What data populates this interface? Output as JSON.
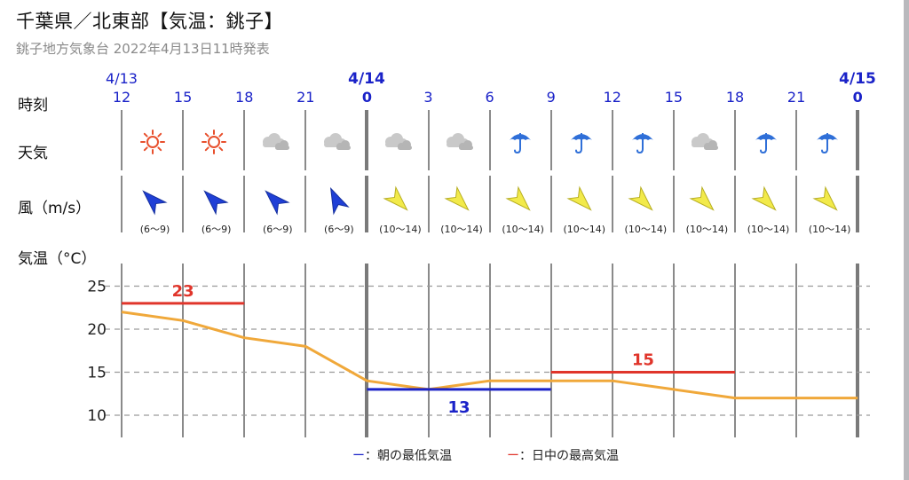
{
  "header": {
    "title": "千葉県／北東部【気温：銚子】",
    "subtitle": "銚子地方気象台 2022年4月13日11時発表"
  },
  "rows": {
    "time_label": "時刻",
    "weather_label": "天気",
    "wind_label": "風（m/s）",
    "temp_label": "気温（°C）"
  },
  "dates": [
    "4/13",
    "4/14",
    "4/15"
  ],
  "hours": [
    "12",
    "15",
    "18",
    "21",
    "0",
    "3",
    "6",
    "9",
    "12",
    "15",
    "18",
    "21",
    "0"
  ],
  "weather": [
    "sunny-icon",
    "sunny-icon",
    "cloudy-icon",
    "cloudy-icon",
    "cloudy-icon",
    "cloudy-icon",
    "umbrella-icon",
    "umbrella-icon",
    "umbrella-icon",
    "cloudy-icon",
    "umbrella-icon",
    "umbrella-icon"
  ],
  "wind": {
    "ranges": [
      "(6〜9)",
      "(6〜9)",
      "(6〜9)",
      "(6〜9)",
      "(10〜14)",
      "(10〜14)",
      "(10〜14)",
      "(10〜14)",
      "(10〜14)",
      "(10〜14)",
      "(10〜14)",
      "(10〜14)"
    ],
    "directions": [
      "SE",
      "SE",
      "SE",
      "SSE",
      "NW",
      "NW",
      "NW",
      "NW",
      "NW",
      "NW",
      "NW",
      "NW"
    ],
    "colors": [
      "#1f3fd6",
      "#1f3fd6",
      "#1f3fd6",
      "#1f3fd6",
      "#f2ea4a",
      "#f2ea4a",
      "#f2ea4a",
      "#f2ea4a",
      "#f2ea4a",
      "#f2ea4a",
      "#f2ea4a",
      "#f2ea4a"
    ]
  },
  "legend": {
    "min_label": "ー：朝の最低気温",
    "max_label": "ー：日中の最高気温",
    "min_color": "#1a22c8",
    "max_color": "#e0352b"
  },
  "chart_data": {
    "type": "line",
    "title": "",
    "xlabel": "",
    "ylabel": "気温（°C）",
    "ylim": [
      8,
      28
    ],
    "yticks": [
      10,
      15,
      20,
      25
    ],
    "grid": true,
    "x": [
      "4/13 12",
      "15",
      "18",
      "21",
      "4/14 0",
      "3",
      "6",
      "9",
      "12",
      "15",
      "18",
      "21",
      "4/15 0"
    ],
    "series": [
      {
        "values": [
          22,
          21,
          19,
          18,
          14,
          13,
          14,
          14,
          14,
          13,
          12,
          12,
          12
        ],
        "color": "#f0a83a"
      }
    ],
    "annotations": [
      {
        "label": "23",
        "value": 23,
        "from": 0,
        "to": 2,
        "kind": "max",
        "color": "#e0352b"
      },
      {
        "label": "13",
        "value": 13,
        "from": 4,
        "to": 7,
        "kind": "min",
        "color": "#1a22c8"
      },
      {
        "label": "15",
        "value": 15,
        "from": 7,
        "to": 10,
        "kind": "max",
        "color": "#e0352b"
      }
    ]
  }
}
